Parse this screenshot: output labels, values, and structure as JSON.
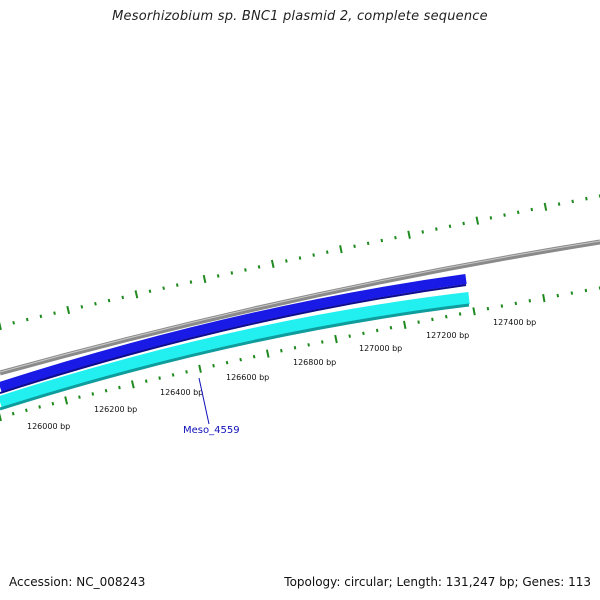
{
  "title": "Mesorhizobium sp. BNC1 plasmid 2, complete sequence",
  "footer": {
    "accession": "Accession: NC_008243",
    "summary": "Topology: circular; Length: 131,247 bp; Genes: 113"
  },
  "colors": {
    "backbone": "#8a8a8a",
    "forward_track": "#1a1ae6",
    "reverse_track": "#22f0f0",
    "reverse_edge": "#0f9c9c",
    "ticks": "#1f8a1f",
    "gene_label": "#1010b8"
  },
  "scale": {
    "ticks": [
      {
        "label": "126000 bp"
      },
      {
        "label": "126200 bp"
      },
      {
        "label": "126400 bp"
      },
      {
        "label": "126600 bp"
      },
      {
        "label": "126800 bp"
      },
      {
        "label": "127000 bp"
      },
      {
        "label": "127200 bp"
      },
      {
        "label": "127400 bp"
      }
    ]
  },
  "genes": [
    {
      "label": "Meso_4559",
      "strand": "reverse"
    }
  ]
}
